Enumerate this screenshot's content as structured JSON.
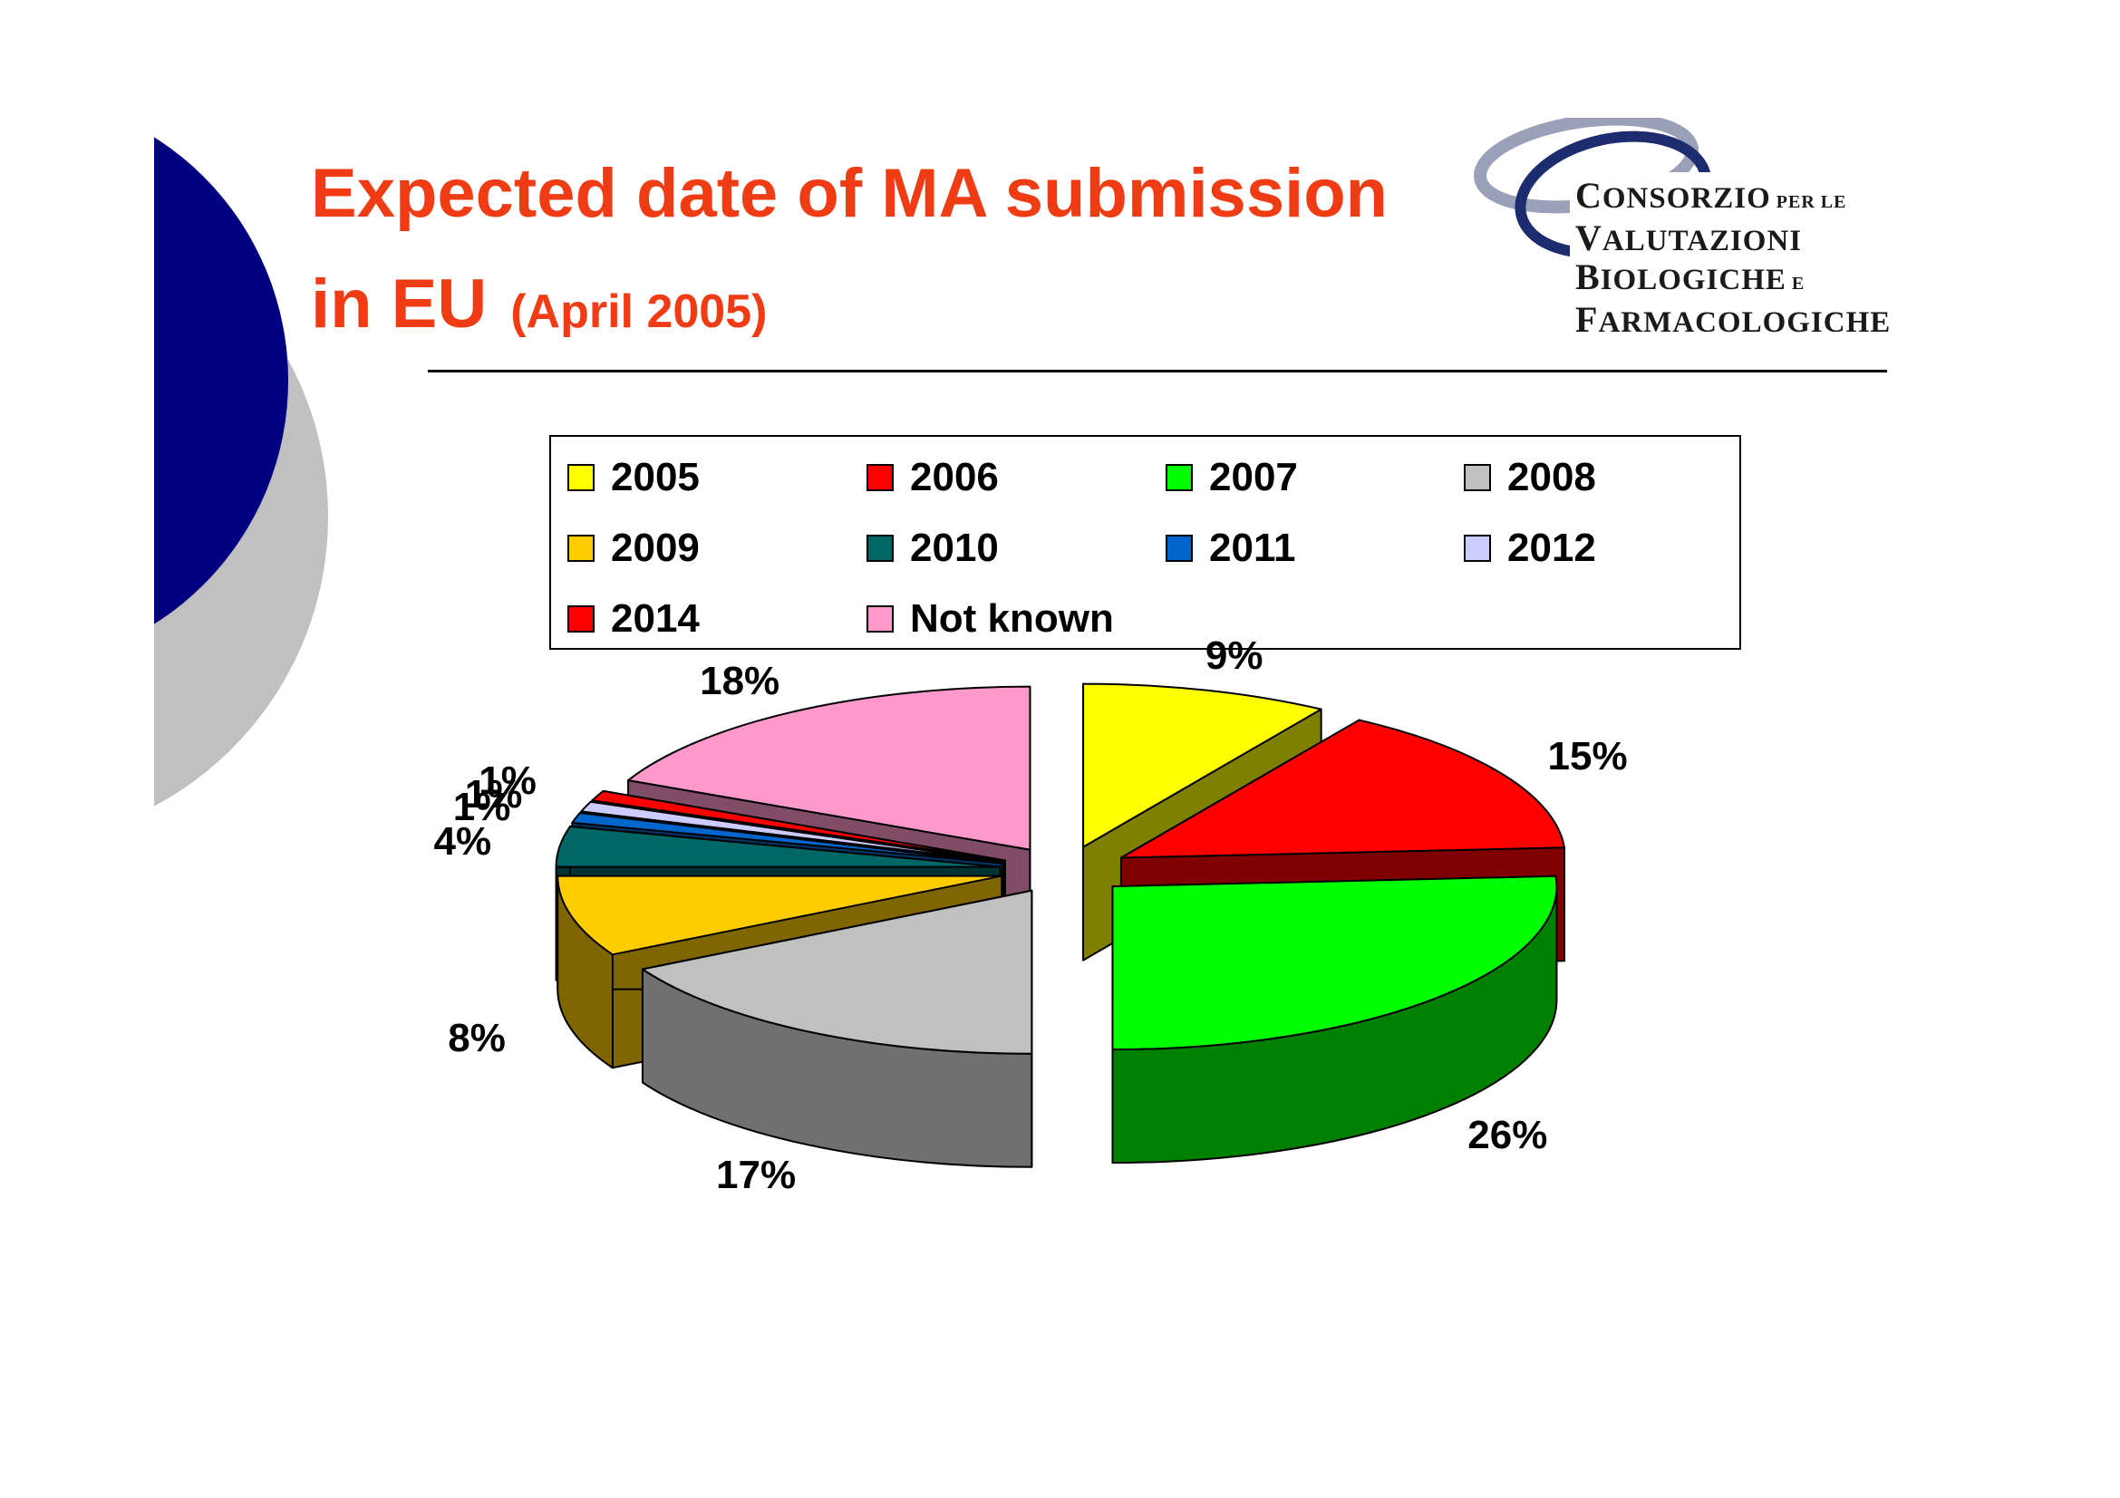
{
  "slide": {
    "title_line1": "Expected date of MA submission",
    "title_line2": "in EU",
    "title_sub": "(April 2005)"
  },
  "logo": {
    "lines": [
      {
        "cap": "C",
        "rest": "ONSORZIO",
        "small": "PER LE"
      },
      {
        "cap": "V",
        "rest": "ALUTAZIONI",
        "small": ""
      },
      {
        "cap": "B",
        "rest": "IOLOGICHE",
        "small": "E"
      },
      {
        "cap": "F",
        "rest": "ARMACOLOGICHE",
        "small": ""
      }
    ]
  },
  "colors": {
    "title": "#f03c14",
    "deco_blue": "#000080",
    "deco_gray": "#c0c0c0"
  },
  "chart_data": {
    "type": "pie",
    "title": "",
    "legend_position": "top",
    "series": [
      {
        "label": "2005",
        "value": 9,
        "pct_label": "9%",
        "color": "#ffff00",
        "side": "#808000"
      },
      {
        "label": "2006",
        "value": 15,
        "pct_label": "15%",
        "color": "#ff0000",
        "side": "#800000"
      },
      {
        "label": "2007",
        "value": 26,
        "pct_label": "26%",
        "color": "#00ff00",
        "side": "#008000"
      },
      {
        "label": "2008",
        "value": 17,
        "pct_label": "17%",
        "color": "#c0c0c0",
        "side": "#707070"
      },
      {
        "label": "2009",
        "value": 8,
        "pct_label": "8%",
        "color": "#ffcc00",
        "side": "#806600"
      },
      {
        "label": "2010",
        "value": 4,
        "pct_label": "4%",
        "color": "#006666",
        "side": "#003333"
      },
      {
        "label": "2011",
        "value": 1,
        "pct_label": "1%",
        "color": "#0066cc",
        "side": "#003366"
      },
      {
        "label": "2012",
        "value": 1,
        "pct_label": "1%",
        "color": "#ccccff",
        "side": "#666680"
      },
      {
        "label": "2014",
        "value": 1,
        "pct_label": "1%",
        "color": "#ff0000",
        "side": "#800000"
      },
      {
        "label": "Not known",
        "value": 18,
        "pct_label": "18%",
        "color": "#ff99cc",
        "side": "#804c66"
      }
    ]
  }
}
